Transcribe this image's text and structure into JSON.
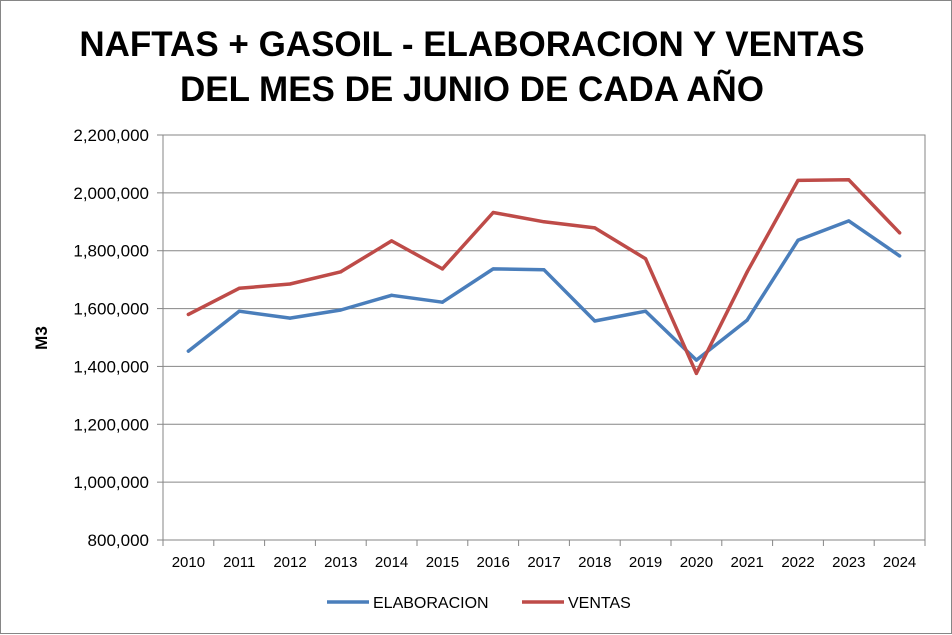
{
  "chart_data": {
    "type": "line",
    "title": [
      "NAFTAS + GASOIL - ELABORACION Y VENTAS",
      "DEL MES DE JUNIO DE CADA AÑO"
    ],
    "xlabel": "",
    "ylabel": "M3",
    "ylim": [
      800000,
      2200000
    ],
    "yticks": [
      800000,
      1000000,
      1200000,
      1400000,
      1600000,
      1800000,
      2000000,
      2200000
    ],
    "ytick_labels": [
      "800,000",
      "1,000,000",
      "1,200,000",
      "1,400,000",
      "1,600,000",
      "1,800,000",
      "2,000,000",
      "2,200,000"
    ],
    "categories": [
      "2010",
      "2011",
      "2012",
      "2013",
      "2014",
      "2015",
      "2016",
      "2017",
      "2018",
      "2019",
      "2020",
      "2021",
      "2022",
      "2023",
      "2024"
    ],
    "grid": "horizontal",
    "legend_position": "bottom",
    "series": [
      {
        "name": "ELABORACION",
        "color": "#4A7EBB",
        "values": [
          1453000,
          1591000,
          1567000,
          1595000,
          1646000,
          1622000,
          1737000,
          1734000,
          1557000,
          1591000,
          1422000,
          1560000,
          1836000,
          1903000,
          1782000
        ]
      },
      {
        "name": "VENTAS",
        "color": "#BE4B48",
        "values": [
          1580000,
          1670000,
          1685000,
          1727000,
          1834000,
          1737000,
          1932000,
          1900000,
          1879000,
          1772000,
          1376000,
          1727000,
          2043000,
          2045000,
          1862000
        ]
      }
    ]
  }
}
